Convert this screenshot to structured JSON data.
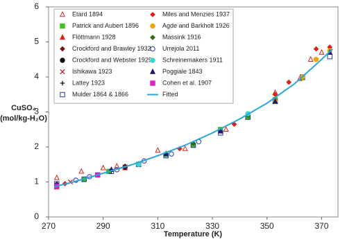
{
  "chart_data": {
    "type": "scatter",
    "xlabel": "Temperature (K)",
    "ylabel": [
      "CuSO₄",
      "(mol/kg-H₂O)"
    ],
    "xlim": [
      270,
      376
    ],
    "ylim": [
      0,
      6
    ],
    "xticks": [
      270,
      290,
      310,
      330,
      350,
      370
    ],
    "yticks": [
      0,
      1,
      2,
      3,
      4,
      5,
      6
    ],
    "grid": false,
    "legend": "upper left",
    "series": [
      {
        "name": "Etard 1894",
        "color": "#e0201b",
        "marker": "triangle-open",
        "x": [
          273,
          273,
          282,
          290,
          295,
          310,
          320,
          335,
          353,
          362,
          366,
          370
        ],
        "values": [
          0.85,
          1.12,
          1.3,
          1.4,
          1.45,
          1.9,
          1.95,
          2.5,
          3.55,
          3.95,
          4.5,
          4.7
        ]
      },
      {
        "name": "Patrick and Aubert 1896",
        "color": "#3fc21f",
        "marker": "square",
        "x": [
          273,
          283,
          292,
          303,
          313,
          323,
          333,
          343,
          353,
          363
        ],
        "values": [
          0.88,
          1.07,
          1.3,
          1.5,
          1.78,
          2.05,
          2.5,
          2.85,
          3.35,
          3.98
        ]
      },
      {
        "name": "Flöttmann 1928",
        "color": "#e0201b",
        "marker": "triangle",
        "x": [
          273,
          298
        ],
        "values": [
          0.9,
          1.4
        ]
      },
      {
        "name": "Crockford and Brawley 1932",
        "color": "#7a1010",
        "marker": "diamond",
        "x": [
          288,
          298
        ],
        "values": [
          1.2,
          1.45
        ]
      },
      {
        "name": "Crockford and Webster 1929",
        "color": "#111111",
        "marker": "circle",
        "x": [
          273,
          298
        ],
        "values": [
          0.92,
          1.42
        ]
      },
      {
        "name": "Ishikawa 1923",
        "color": "#c0182a",
        "marker": "x",
        "x": [
          278,
          298
        ],
        "values": [
          1.0,
          1.43
        ]
      },
      {
        "name": "Lattey 1923",
        "color": "#111111",
        "marker": "plus",
        "x": [
          273,
          293
        ],
        "values": [
          0.95,
          1.3
        ]
      },
      {
        "name": "Mulder 1864 & 1866",
        "color": "#2438a8",
        "marker": "square-open",
        "x": [
          273,
          283,
          288,
          293,
          303,
          313,
          323,
          333,
          343,
          353,
          363,
          373
        ],
        "values": [
          0.95,
          1.08,
          1.2,
          1.3,
          1.5,
          1.75,
          2.05,
          2.4,
          2.85,
          3.3,
          4.0,
          4.58
        ]
      },
      {
        "name": "Miles and Menzies 1937",
        "color": "#e0201b",
        "marker": "diamond",
        "x": [
          276,
          318,
          338,
          353,
          358,
          368,
          373
        ],
        "values": [
          0.95,
          1.95,
          2.65,
          3.5,
          3.85,
          4.8,
          4.85
        ]
      },
      {
        "name": "Agde and Barkholt 1926",
        "color": "#f0a500",
        "marker": "circle",
        "x": [
          353,
          363,
          368,
          373
        ],
        "values": [
          3.3,
          4.0,
          4.5,
          4.75
        ]
      },
      {
        "name": "Massink 1916",
        "color": "#2e6b12",
        "marker": "diamond",
        "x": [
          303,
          323,
          343
        ],
        "values": [
          1.52,
          2.1,
          2.9
        ]
      },
      {
        "name": "Urrejola 2011",
        "color": "#2438a8",
        "marker": "circle-open",
        "x": [
          273,
          280,
          285,
          295,
          305,
          315,
          325
        ],
        "values": [
          0.9,
          1.05,
          1.15,
          1.35,
          1.6,
          1.8,
          2.15
        ]
      },
      {
        "name": "Schreinemakers 1911",
        "color": "#35d6d6",
        "marker": "circle",
        "x": [
          303,
          343
        ],
        "values": [
          1.5,
          2.95
        ]
      },
      {
        "name": "Poggiale 1843",
        "color": "#1a1a6e",
        "marker": "triangle",
        "x": [
          273,
          293,
          313,
          333,
          353,
          373
        ],
        "values": [
          0.9,
          1.35,
          1.8,
          2.45,
          3.3,
          4.7
        ]
      },
      {
        "name": "Cohen et al. 1907",
        "color": "#d81fc8",
        "marker": "square",
        "x": [
          273,
          288
        ],
        "values": [
          0.88,
          1.2
        ]
      },
      {
        "name": "Fitted",
        "color": "#2aa7d6",
        "marker": "line",
        "x": [
          272,
          280,
          290,
          300,
          310,
          320,
          330,
          340,
          350,
          360,
          370,
          374
        ],
        "values": [
          0.86,
          1.02,
          1.25,
          1.48,
          1.75,
          2.05,
          2.4,
          2.8,
          3.25,
          3.8,
          4.5,
          4.8
        ]
      }
    ]
  }
}
